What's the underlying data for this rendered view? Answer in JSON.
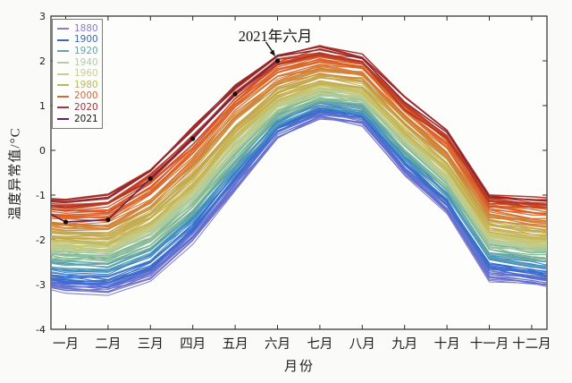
{
  "figure": {
    "background": "#fafaf8",
    "title": ""
  },
  "chart_data": {
    "type": "line",
    "title": "",
    "xlabel": "月份",
    "ylabel": "温度异常值/°C",
    "x_tick_labels": [
      "一月",
      "二月",
      "三月",
      "四月",
      "五月",
      "六月",
      "七月",
      "八月",
      "九月",
      "十月",
      "十一月",
      "十二月"
    ],
    "y_ticks": [
      3,
      2,
      1,
      0,
      -1,
      -2,
      -3,
      -4
    ],
    "ylim": [
      -4,
      3
    ],
    "grid": false,
    "legend": {
      "position": "upper-left",
      "entries": [
        {
          "label": "1880",
          "color": "#8a7ec8",
          "text_color": "#8a7ec8"
        },
        {
          "label": "1900",
          "color": "#3e69b8",
          "text_color": "#3e69b8"
        },
        {
          "label": "1920",
          "color": "#6aa4a2",
          "text_color": "#6aa4a2"
        },
        {
          "label": "1940",
          "color": "#b3cab0",
          "text_color": "#b3cab0"
        },
        {
          "label": "1960",
          "color": "#cacc96",
          "text_color": "#cacc96"
        },
        {
          "label": "1980",
          "color": "#b8b85c",
          "text_color": "#b8b85c"
        },
        {
          "label": "2000",
          "color": "#d2693b",
          "text_color": "#d2693b"
        },
        {
          "label": "2020",
          "color": "#a03440",
          "text_color": "#a03440"
        },
        {
          "label": "2021",
          "color": "#6d2055",
          "text_color": "#1a1a1a"
        }
      ]
    },
    "ensemble": {
      "note": "one line per year, 1880-2020, colored by year; 2021 partial line with black dot markers",
      "from": 1880,
      "to": 2020,
      "colormap": [
        [
          1880,
          "#8a7ec8"
        ],
        [
          1893,
          "#5b6fd0"
        ],
        [
          1903,
          "#3566cf"
        ],
        [
          1912,
          "#3f8ccd"
        ],
        [
          1922,
          "#5fa7a5"
        ],
        [
          1932,
          "#86bb92"
        ],
        [
          1942,
          "#a9caa0"
        ],
        [
          1952,
          "#c2ce8e"
        ],
        [
          1962,
          "#ccc773"
        ],
        [
          1972,
          "#c3b254"
        ],
        [
          1982,
          "#c6a148"
        ],
        [
          1992,
          "#d2823a"
        ],
        [
          2002,
          "#de662a"
        ],
        [
          2010,
          "#d04f26"
        ],
        [
          2016,
          "#b93a26"
        ],
        [
          2020,
          "#8f2430"
        ]
      ]
    },
    "series": [
      {
        "name": "1880",
        "year": 1880,
        "color": "#8a7ec8",
        "values": [
          -3.1,
          -3.15,
          -2.85,
          -2.0,
          -0.85,
          0.35,
          0.75,
          0.62,
          -0.5,
          -1.35,
          -2.85,
          -2.95
        ]
      },
      {
        "name": "1900",
        "year": 1900,
        "color": "#3e69b8",
        "values": [
          -2.9,
          -2.95,
          -2.6,
          -1.75,
          -0.6,
          0.5,
          0.9,
          0.78,
          -0.32,
          -1.15,
          -2.62,
          -2.75
        ]
      },
      {
        "name": "1920",
        "year": 1920,
        "color": "#6aa4a2",
        "values": [
          -2.55,
          -2.6,
          -2.2,
          -1.4,
          -0.3,
          0.72,
          1.1,
          0.97,
          -0.05,
          -0.9,
          -2.3,
          -2.45
        ]
      },
      {
        "name": "1940",
        "year": 1940,
        "color": "#a9caa0",
        "values": [
          -2.2,
          -2.25,
          -1.85,
          -1.05,
          0.05,
          0.98,
          1.3,
          1.18,
          0.22,
          -0.62,
          -2.0,
          -2.15
        ]
      },
      {
        "name": "1960",
        "year": 1960,
        "color": "#ccc773",
        "values": [
          -2.05,
          -2.1,
          -1.65,
          -0.85,
          0.25,
          1.12,
          1.45,
          1.32,
          0.38,
          -0.45,
          -1.85,
          -2.0
        ]
      },
      {
        "name": "1980",
        "year": 1980,
        "color": "#b8b85c",
        "values": [
          -1.85,
          -1.88,
          -1.4,
          -0.55,
          0.55,
          1.35,
          1.68,
          1.55,
          0.6,
          -0.2,
          -1.6,
          -1.75
        ]
      },
      {
        "name": "2000",
        "year": 2000,
        "color": "#de662a",
        "values": [
          -1.5,
          -1.5,
          -0.95,
          -0.05,
          1.0,
          1.75,
          2.0,
          1.88,
          0.9,
          0.12,
          -1.25,
          -1.4
        ]
      },
      {
        "name": "2020",
        "year": 2020,
        "color": "#8f2430",
        "values": [
          -1.15,
          -1.05,
          -0.45,
          0.45,
          1.4,
          2.1,
          2.25,
          2.05,
          1.08,
          0.4,
          -1.05,
          -1.1
        ]
      },
      {
        "name": "2021",
        "year": 2021,
        "color": "#6d2055",
        "marker": "black-dot",
        "values": [
          -1.6,
          -1.55,
          -0.63,
          0.26,
          1.26,
          2.0
        ]
      }
    ],
    "annotation": {
      "text": "2021年六月",
      "target_series": "2021",
      "target_month_index": 5,
      "target_value": 2.0
    }
  }
}
